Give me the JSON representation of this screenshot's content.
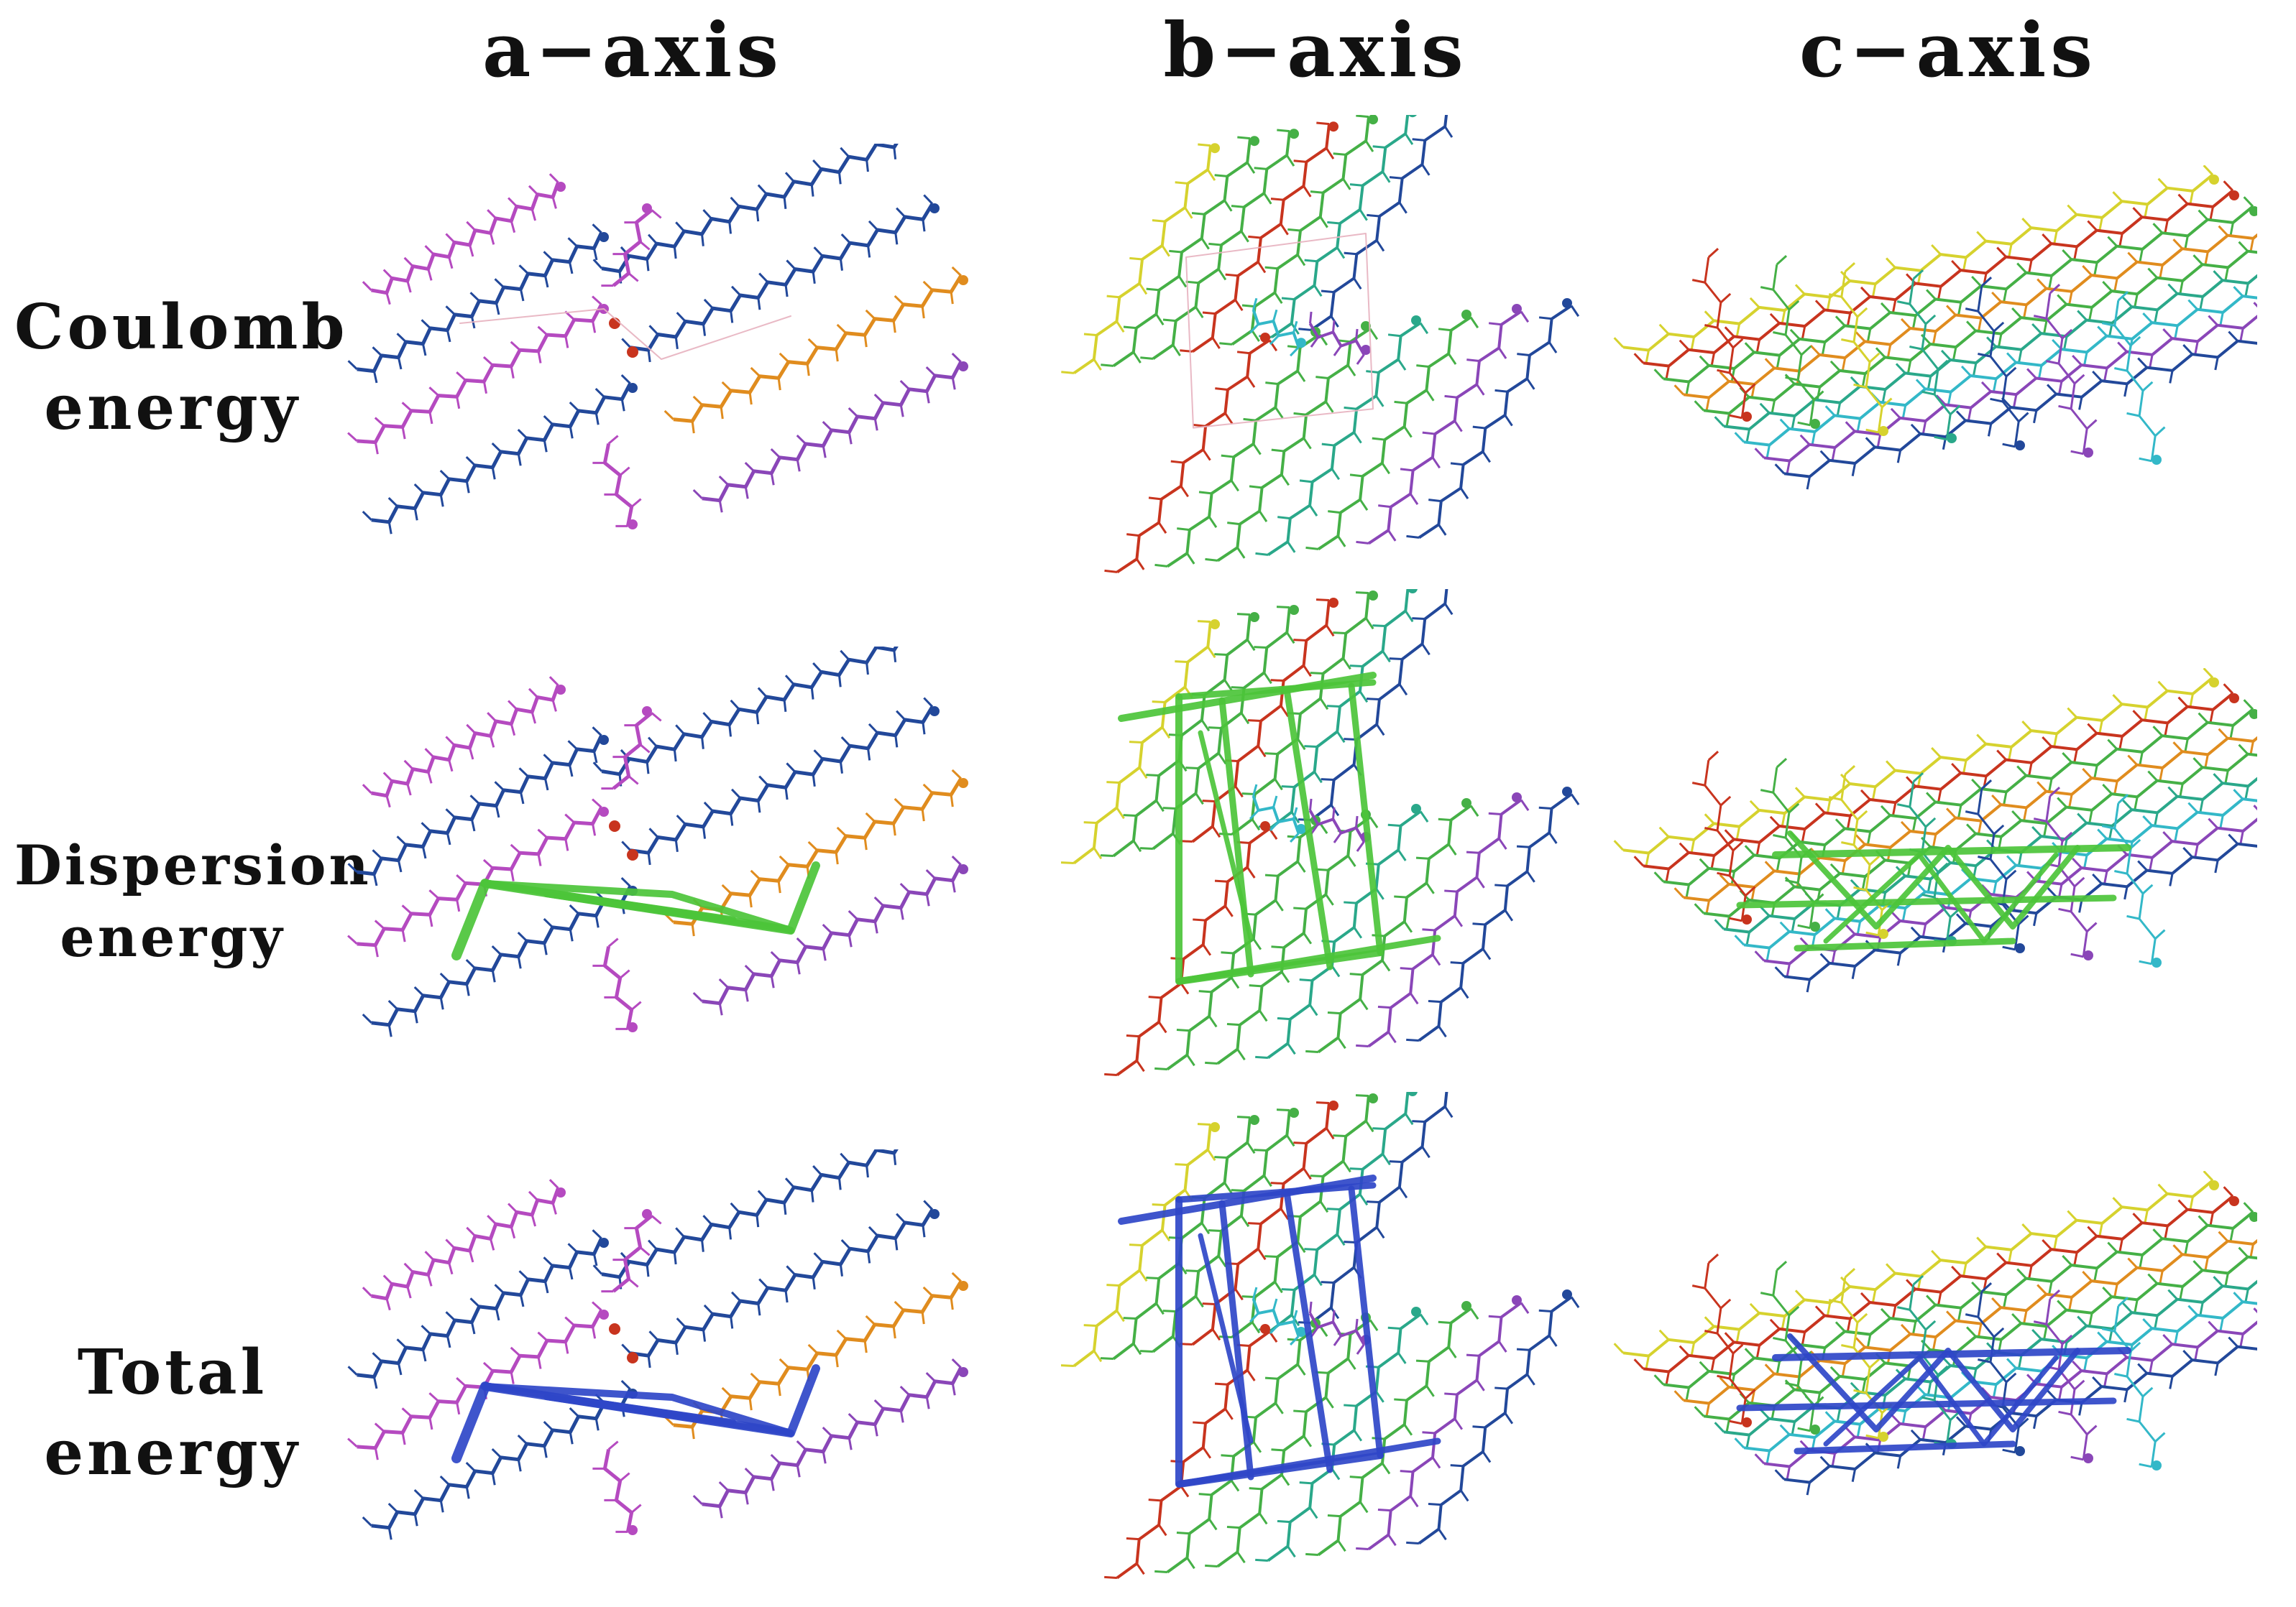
{
  "columns": [
    "a−axis",
    "b−axis",
    "c−axis"
  ],
  "rows": [
    {
      "line1": "Coulomb",
      "line2": "energy",
      "frame_color": null
    },
    {
      "line1": "Dispersion",
      "line2": "energy",
      "frame_color": "#4cc43a"
    },
    {
      "line1": "Total",
      "line2": "energy",
      "frame_color": "#2f47c8"
    }
  ],
  "molecule_colors": {
    "magenta": "#b54ac0",
    "blue": "#22489a",
    "orange": "#e08c1e",
    "purple": "#8a46b8",
    "red": "#c8341e",
    "green": "#45b046",
    "yellow": "#d6d22e",
    "cyan": "#33b8c8",
    "teal": "#2aa88a"
  }
}
